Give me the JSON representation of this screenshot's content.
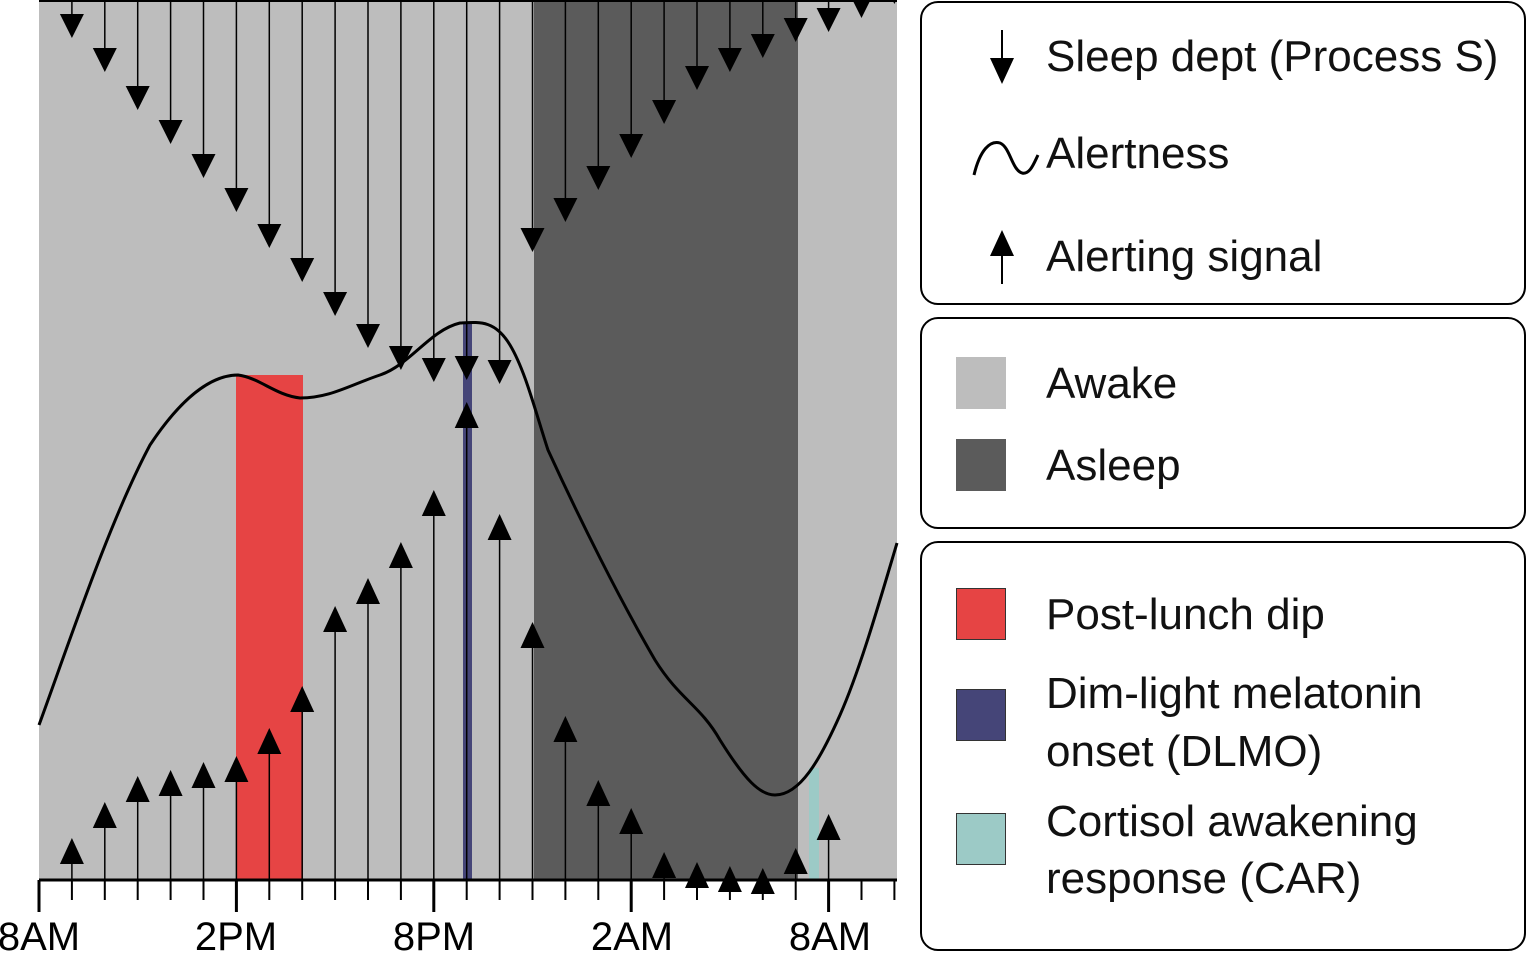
{
  "colors": {
    "awake": "#bdbdbd",
    "asleep": "#5b5b5b",
    "post_lunch_dip": "#e64444",
    "dlmo": "#454578",
    "car": "#9ccac6",
    "line": "#000000"
  },
  "axis": {
    "ticks": [
      "8AM",
      "2PM",
      "8PM",
      "2AM",
      "8AM"
    ]
  },
  "legend": {
    "process": [
      {
        "label": "Sleep dept (Process S)",
        "icon": "down-arrow-icon"
      },
      {
        "label": "Alertness",
        "icon": "wave-line-icon"
      },
      {
        "label": "Alerting signal",
        "icon": "up-arrow-icon"
      }
    ],
    "states": [
      {
        "label": "Awake",
        "color": "#bdbdbd"
      },
      {
        "label": "Asleep",
        "color": "#5b5b5b"
      }
    ],
    "markers": [
      {
        "label_line1": "Post-lunch dip",
        "label_line2": "",
        "color": "#e64444"
      },
      {
        "label_line1": "Dim-light melatonin",
        "label_line2": "onset (DLMO)",
        "color": "#454578"
      },
      {
        "label_line1": "Cortisol awakening",
        "label_line2": "response (CAR)",
        "color": "#9ccac6"
      }
    ]
  }
}
